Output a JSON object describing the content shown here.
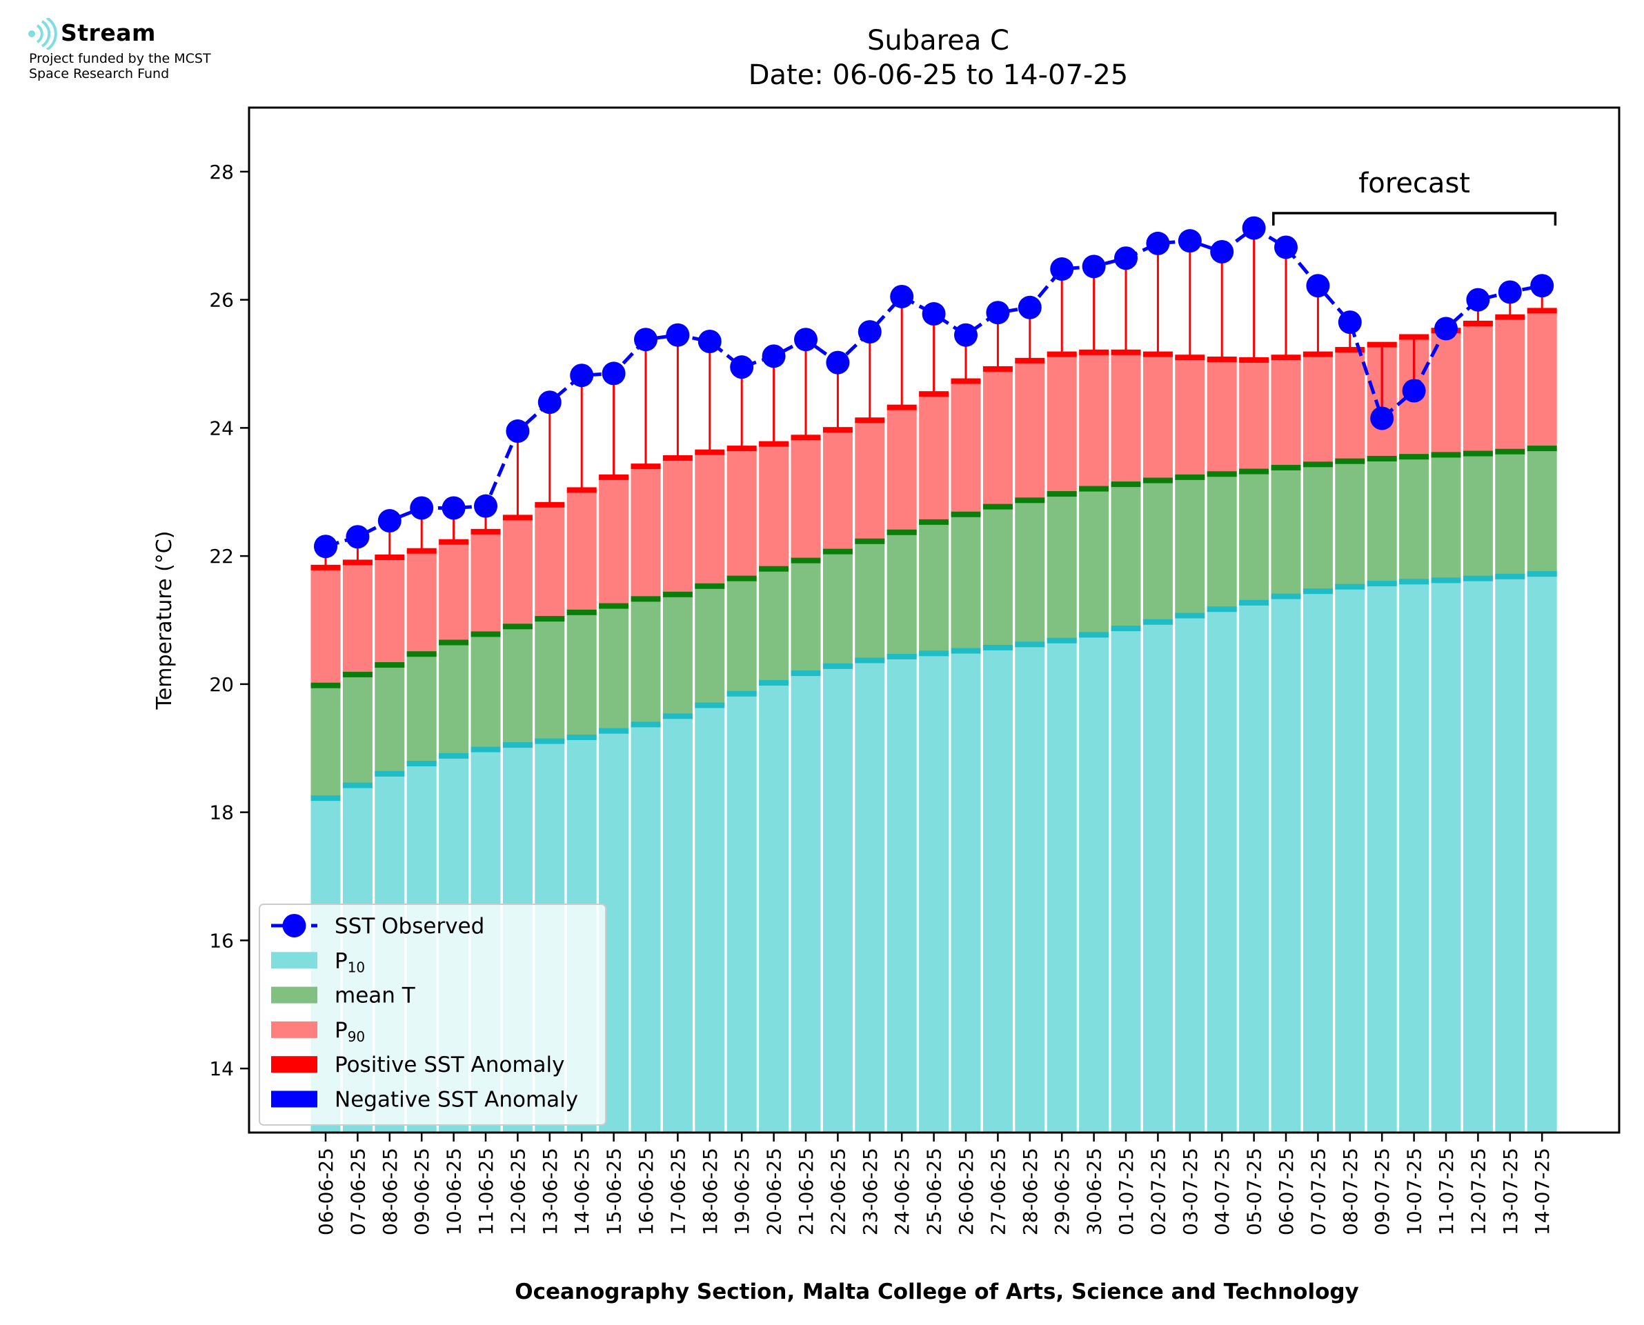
{
  "branding": {
    "name": "Stream",
    "line1": "Project funded by the MCST",
    "line2": "Space Research Fund"
  },
  "colors": {
    "p10": "#80dede",
    "p10_cap": "#1fbcc6",
    "mean": "#80c080",
    "mean_cap": "#0a7d0a",
    "p90": "#ff7f7f",
    "p90_cap": "#ff0000",
    "observed": "#0000ff",
    "anomaly_pos": "#ff0000",
    "anomaly_neg": "#0000ff"
  },
  "chart_data": {
    "type": "bar",
    "title": "Subarea C",
    "subtitle": "Date: 06-06-25 to 14-07-25",
    "xlabel": "Oceanography Section, Malta College of Arts, Science and Technology",
    "ylabel": "Temperature (°C)",
    "ylim": [
      13,
      29
    ],
    "yticks": [
      14,
      16,
      18,
      20,
      22,
      24,
      26,
      28
    ],
    "grid": false,
    "legend_position": "lower-left",
    "forecast_label": "forecast",
    "forecast_range": [
      "06-07-25",
      "14-07-25"
    ],
    "categories": [
      "06-06-25",
      "07-06-25",
      "08-06-25",
      "09-06-25",
      "10-06-25",
      "11-06-25",
      "12-06-25",
      "13-06-25",
      "14-06-25",
      "15-06-25",
      "16-06-25",
      "17-06-25",
      "18-06-25",
      "19-06-25",
      "20-06-25",
      "21-06-25",
      "22-06-25",
      "23-06-25",
      "24-06-25",
      "25-06-25",
      "26-06-25",
      "27-06-25",
      "28-06-25",
      "29-06-25",
      "30-06-25",
      "01-07-25",
      "02-07-25",
      "03-07-25",
      "04-07-25",
      "05-07-25",
      "06-07-25",
      "07-07-25",
      "08-07-25",
      "09-07-25",
      "10-07-25",
      "11-07-25",
      "12-07-25",
      "13-07-25",
      "14-07-25"
    ],
    "series": [
      {
        "name": "SST Observed",
        "kind": "line-marker",
        "values": [
          22.15,
          22.3,
          22.55,
          22.75,
          22.75,
          22.78,
          23.95,
          24.4,
          24.82,
          24.85,
          25.38,
          25.45,
          25.35,
          24.95,
          25.12,
          25.38,
          25.02,
          25.5,
          26.05,
          25.78,
          25.45,
          25.8,
          25.88,
          26.48,
          26.52,
          26.65,
          26.88,
          26.92,
          26.75,
          27.12,
          26.82,
          26.22,
          25.65,
          24.15,
          24.58,
          25.55,
          26.0,
          26.12,
          26.22
        ]
      },
      {
        "name": "P10",
        "label_base": "P",
        "label_sub": "10",
        "kind": "bar",
        "values": [
          18.22,
          18.42,
          18.6,
          18.76,
          18.88,
          18.98,
          19.05,
          19.11,
          19.17,
          19.27,
          19.37,
          19.5,
          19.67,
          19.85,
          20.02,
          20.17,
          20.28,
          20.37,
          20.43,
          20.48,
          20.52,
          20.57,
          20.62,
          20.68,
          20.77,
          20.87,
          20.97,
          21.07,
          21.17,
          21.27,
          21.37,
          21.45,
          21.52,
          21.57,
          21.6,
          21.62,
          21.65,
          21.68,
          21.72
        ]
      },
      {
        "name": "mean T",
        "kind": "bar",
        "values": [
          19.98,
          20.15,
          20.3,
          20.47,
          20.65,
          20.78,
          20.9,
          21.02,
          21.12,
          21.22,
          21.33,
          21.4,
          21.53,
          21.65,
          21.8,
          21.93,
          22.07,
          22.23,
          22.37,
          22.53,
          22.65,
          22.77,
          22.87,
          22.97,
          23.05,
          23.12,
          23.18,
          23.23,
          23.28,
          23.32,
          23.38,
          23.43,
          23.48,
          23.52,
          23.55,
          23.58,
          23.6,
          23.63,
          23.68
        ]
      },
      {
        "name": "P90",
        "label_base": "P",
        "label_sub": "90",
        "kind": "bar",
        "values": [
          21.82,
          21.9,
          21.98,
          22.08,
          22.22,
          22.38,
          22.6,
          22.8,
          23.03,
          23.23,
          23.4,
          23.53,
          23.62,
          23.68,
          23.75,
          23.85,
          23.97,
          24.12,
          24.32,
          24.53,
          24.73,
          24.92,
          25.05,
          25.15,
          25.18,
          25.18,
          25.15,
          25.1,
          25.07,
          25.06,
          25.1,
          25.15,
          25.22,
          25.3,
          25.42,
          25.52,
          25.63,
          25.73,
          25.83
        ]
      },
      {
        "name": "Positive SST Anomaly",
        "kind": "anomaly-line"
      },
      {
        "name": "Negative SST Anomaly",
        "kind": "anomaly-line"
      }
    ]
  }
}
